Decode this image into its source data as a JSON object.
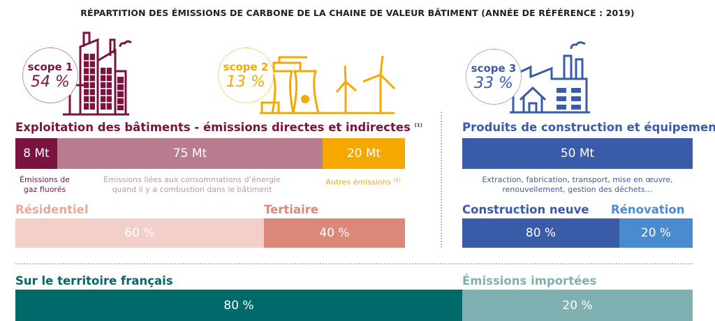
{
  "title": "RÉPARTITION DES ÉMISSIONS DE CARBONE DE LA CHAINE DE VALEUR BÂTIMENT (ANNÉE DE RÉFÉRENCE : 2019)",
  "scopes": [
    {
      "label": "scope 1",
      "value": "54 %",
      "color": "#7b1340",
      "icon": "buildings-icon"
    },
    {
      "label": "scope 2",
      "value": "13 %",
      "color": "#f5a800",
      "icon": "power-plant-wind-turbines-icon"
    },
    {
      "label": "scope 3",
      "value": "33 %",
      "color": "#3a5ba7",
      "icon": "factory-icon"
    }
  ],
  "exploitation": {
    "heading": "Exploitation des bâtiments - émissions directes et indirectes",
    "note": "(1)",
    "segments": [
      {
        "label": "8 Mt",
        "caption": "Émissions de gaz fluorés",
        "color": "#7b1340"
      },
      {
        "label": "75 Mt",
        "caption": "Émissions liées aux consommations d’énergie quand il y a combustion dans le bâtiment",
        "color": "#b77d8e"
      },
      {
        "label": "20 Mt",
        "caption": "Autres émissions",
        "caption_note": "(2)",
        "color": "#f5a800"
      }
    ]
  },
  "usage": {
    "segments": [
      {
        "name": "Résidentiel",
        "label": "60 %",
        "color": "#f2cfc8"
      },
      {
        "name": "Tertiaire",
        "label": "40 %",
        "color": "#dc8878"
      }
    ]
  },
  "produits": {
    "heading": "Produits de construction et équipements",
    "label": "50 Mt",
    "caption": "Extraction, fabrication, transport, mise en œuvre, renouvellement, gestion des déchets…",
    "color": "#3a5ba7"
  },
  "travaux": {
    "segments": [
      {
        "name": "Construction neuve",
        "label": "80 %",
        "color": "#3a5ba7"
      },
      {
        "name": "Rénovation",
        "label": "20 %",
        "color": "#4a8bd0"
      }
    ]
  },
  "territoire": {
    "segments": [
      {
        "name": "Sur le territoire français",
        "label": "80 %",
        "color": "#006a6a"
      },
      {
        "name": "Émissions importées",
        "label": "20 %",
        "color": "#7fb1b3"
      }
    ]
  },
  "chart_data": [
    {
      "type": "bar",
      "stacked": true,
      "title": "Exploitation des bâtiments - émissions directes et indirectes",
      "categories": [
        "Émissions de gaz fluorés",
        "Émissions liées aux consommations d’énergie",
        "Autres émissions"
      ],
      "values": [
        8,
        75,
        20
      ],
      "unit": "Mt"
    },
    {
      "type": "bar",
      "stacked": true,
      "categories": [
        "Résidentiel",
        "Tertiaire"
      ],
      "values": [
        60,
        40
      ],
      "unit": "%"
    },
    {
      "type": "bar",
      "title": "Produits de construction et équipements",
      "categories": [
        "Produits de construction et équipements"
      ],
      "values": [
        50
      ],
      "unit": "Mt"
    },
    {
      "type": "bar",
      "stacked": true,
      "categories": [
        "Construction neuve",
        "Rénovation"
      ],
      "values": [
        80,
        20
      ],
      "unit": "%"
    },
    {
      "type": "bar",
      "stacked": true,
      "categories": [
        "Sur le territoire français",
        "Émissions importées"
      ],
      "values": [
        80,
        20
      ],
      "unit": "%"
    },
    {
      "type": "pie",
      "categories": [
        "scope 1",
        "scope 2",
        "scope 3"
      ],
      "values": [
        54,
        13,
        33
      ],
      "unit": "%"
    }
  ]
}
